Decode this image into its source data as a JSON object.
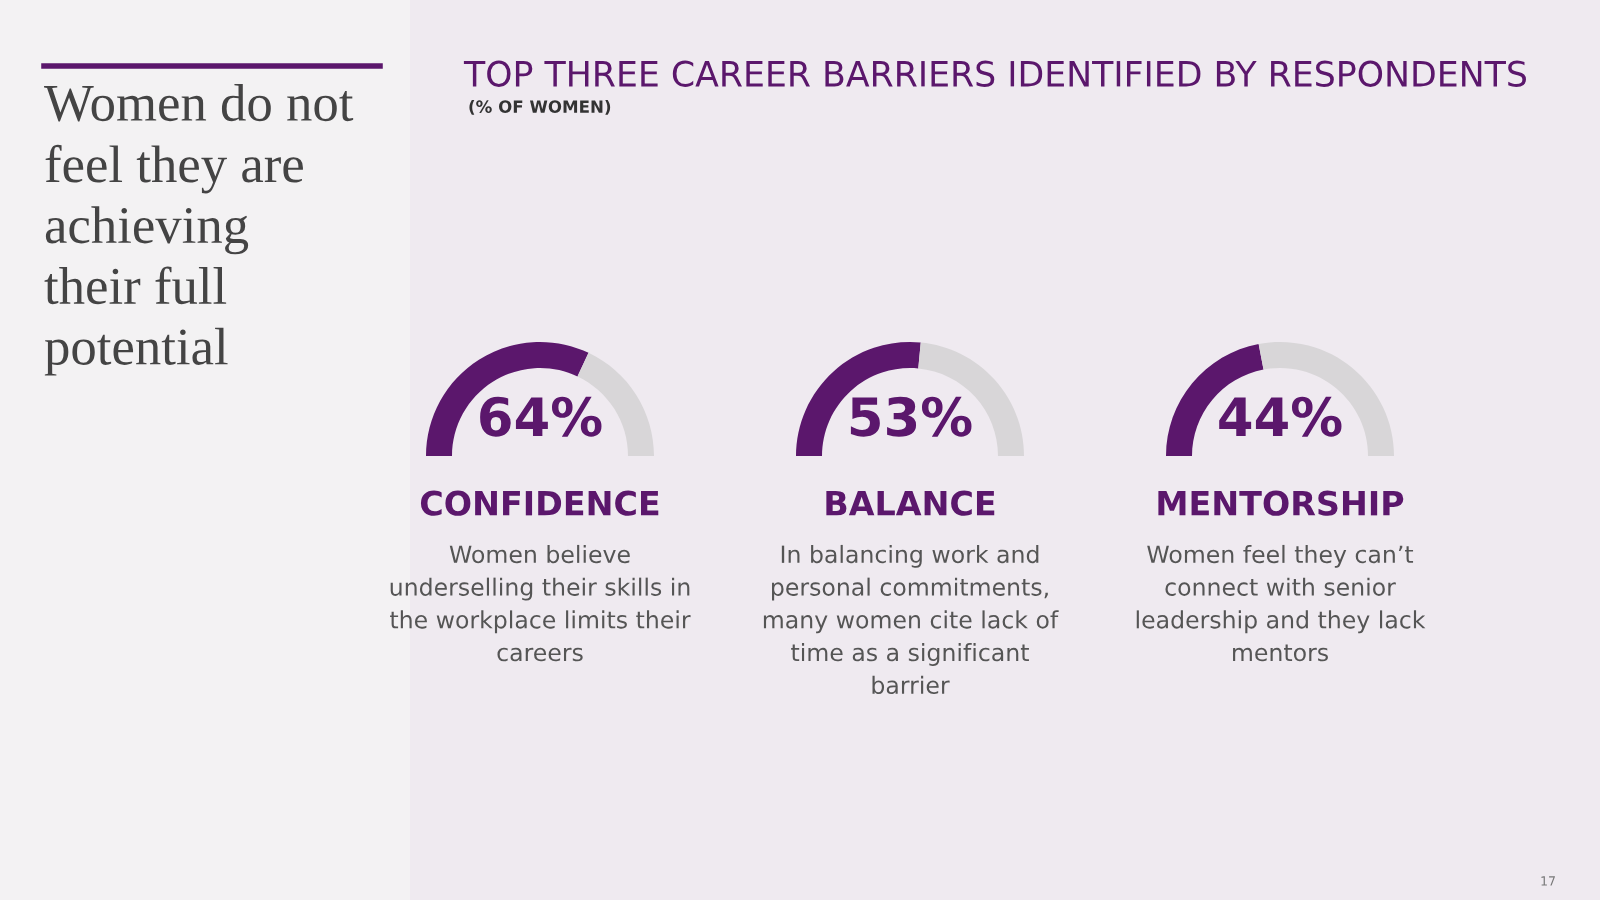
{
  "chart_data": [
    {
      "type": "other",
      "title": "Women do not\nfeel they are\nachieving\ntheir full\npotential"
    },
    {
      "type": "other",
      "title": "TOP THREE CAREER BARRIERS IDENTIFIED BY RESPONDENTS",
      "subtitle": "(% OF WOMEN)",
      "annotations": [
        "17"
      ]
    },
    {
      "type": "donut",
      "title": "CONFIDENCE",
      "categories": [
        null,
        null
      ],
      "values": [
        64,
        36
      ],
      "colors": [
        "#5b176c",
        "#d8d6d8"
      ],
      "value_labels": [
        "64%",
        null
      ],
      "annotations": [
        "Women believe\nunderselling their skills in\nthe workplace limits their\ncareers"
      ]
    },
    {
      "type": "donut",
      "title": "BALANCE",
      "categories": [
        null,
        null
      ],
      "values": [
        53,
        47
      ],
      "colors": [
        "#5b176c",
        "#d8d6d8"
      ],
      "value_labels": [
        "53%",
        null
      ],
      "annotations": [
        "In balancing work and\npersonal commitments,\nmany women cite lack of\ntime as a significant\nbarrier"
      ]
    },
    {
      "type": "donut",
      "title": "MENTORSHIP",
      "categories": [
        null,
        null
      ],
      "values": [
        44,
        56
      ],
      "colors": [
        "#5b176c",
        "#d8d6d8"
      ],
      "value_labels": [
        "44%",
        null
      ],
      "annotations": [
        "Women feel they can’t\nconnect with senior\nleadership and they lack\nmentors"
      ]
    }
  ]
}
